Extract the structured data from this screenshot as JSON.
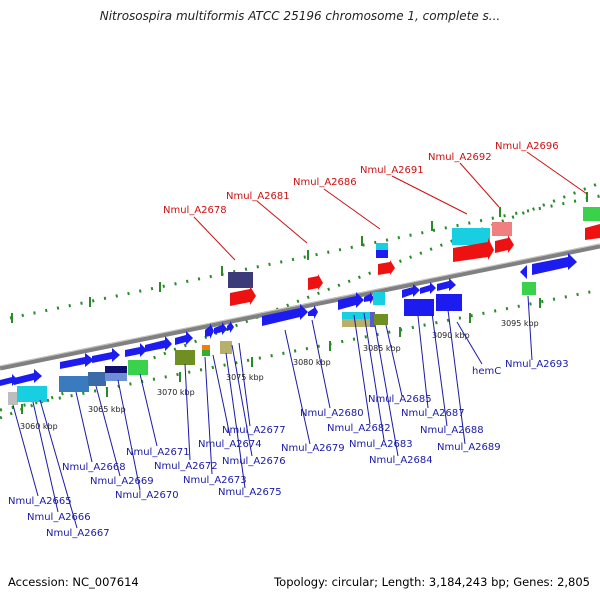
{
  "header": {
    "title": "Nitrosospira multiformis ATCC 25196 chromosome 1, complete s..."
  },
  "footer": {
    "accession": "Accession: NC_007614",
    "topology": "Topology: circular; Length: 3,184,243 bp; Genes: 2,805"
  },
  "colors": {
    "backbone": "#8c8c8c",
    "gene_blue": "#1c1cf0",
    "label_blue": "#1a1aa6",
    "label_red": "#cc1111",
    "track_dots": "#2a8a2a"
  },
  "scale_labels": [
    "3060 kbp",
    "3065 kbp",
    "3070 kbp",
    "3075 kbp",
    "3080 kbp",
    "3085 kbp",
    "3090 kbp",
    "3095 kbp"
  ],
  "labels_top": [
    "Nmul_A2678",
    "Nmul_A2681",
    "Nmul_A2686",
    "Nmul_A2691",
    "Nmul_A2692",
    "Nmul_A2696"
  ],
  "labels_bottom": [
    "Nmul_A2665",
    "Nmul_A2666",
    "Nmul_A2667",
    "Nmul_A2668",
    "Nmul_A2669",
    "Nmul_A2670",
    "Nmul_A2671",
    "Nmul_A2672",
    "Nmul_A2673",
    "Nmul_A2674",
    "Nmul_A2675",
    "Nmul_A2676",
    "Nmul_A2677",
    "Nmul_A2679",
    "Nmul_A2680",
    "Nmul_A2682",
    "Nmul_A2683",
    "Nmul_A2684",
    "Nmul_A2685",
    "Nmul_A2687",
    "Nmul_A2688",
    "Nmul_A2689",
    "hemC",
    "Nmul_A2693"
  ]
}
